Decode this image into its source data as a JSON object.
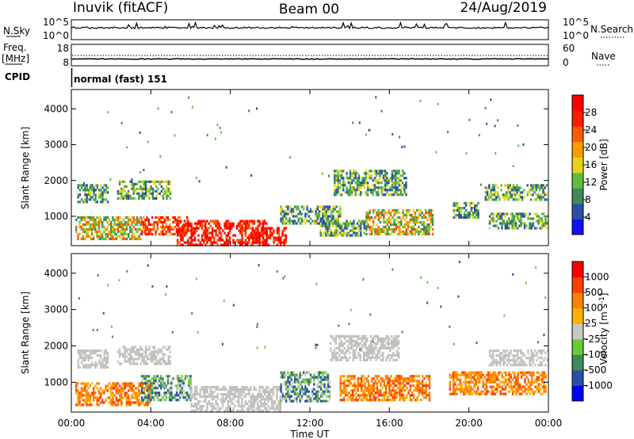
{
  "header": {
    "station": "Inuvik (fitACF)",
    "beam": "Beam 00",
    "date": "24/Aug/2019"
  },
  "strips": {
    "nsky_label": "N.Sky",
    "nsearch_label": "N.Search",
    "noise_ticks_left": [
      "10^5",
      "10^0"
    ],
    "noise_ticks_right": [
      "10^5",
      "10^0"
    ],
    "freq_label": "Freq.",
    "freq_unit": "[MHz]",
    "freq_ticks": [
      "18",
      "8"
    ],
    "nave_label": "Nave",
    "nave_ticks": [
      "60",
      "0"
    ],
    "cpid_label": "CPID",
    "cpid_value": "normal (fast) 151"
  },
  "colors": {
    "power": [
      "#1010ff",
      "#2a4fa6",
      "#3f8a5a",
      "#5cbf3c",
      "#e8d21a",
      "#ff9a00",
      "#ff5a00",
      "#ff1a00",
      "#ff0000"
    ],
    "velocity": [
      "#0000ff",
      "#2a4fa6",
      "#3f8a5a",
      "#66cc33",
      "#c8c8c0",
      "#ffb000",
      "#ff8000",
      "#ff4000",
      "#ff0000"
    ],
    "ground_scatter": "#bebebe"
  },
  "chart_data": [
    {
      "type": "heatmap",
      "title": "",
      "xlabel": "Time UT",
      "ylabel": "Slant Range [km]",
      "x_ticks": [
        "00:00",
        "04:00",
        "08:00",
        "12:00",
        "16:00",
        "20:00",
        "00:00"
      ],
      "x_range_hours": [
        0,
        24
      ],
      "y_ticks": [
        "1000",
        "2000",
        "3000",
        "4000"
      ],
      "y_range_km": [
        180,
        4540
      ],
      "colorbar_label": "Power [dB]",
      "colorbar_ticks": [
        "4",
        "8",
        "12",
        "16",
        "20",
        "24",
        "28"
      ],
      "colorbar_range": [
        0,
        30
      ],
      "regions": [
        {
          "t0": 0.3,
          "t1": 1.8,
          "r0": 1400,
          "r1": 1900,
          "level": "mid"
        },
        {
          "t0": 2.3,
          "t1": 5.0,
          "r0": 1500,
          "r1": 2000,
          "level": "mid"
        },
        {
          "t0": 0.2,
          "t1": 3.5,
          "r0": 400,
          "r1": 1000,
          "level": "high"
        },
        {
          "t0": 3.5,
          "t1": 5.8,
          "r0": 500,
          "r1": 1000,
          "level": "vhigh"
        },
        {
          "t0": 5.3,
          "t1": 9.8,
          "r0": 180,
          "r1": 900,
          "level": "max"
        },
        {
          "t0": 9.0,
          "t1": 10.8,
          "r0": 180,
          "r1": 700,
          "level": "max"
        },
        {
          "t0": 10.5,
          "t1": 13.5,
          "r0": 800,
          "r1": 1300,
          "level": "mid"
        },
        {
          "t0": 12.5,
          "t1": 14.8,
          "r0": 450,
          "r1": 900,
          "level": "mid"
        },
        {
          "t0": 13.2,
          "t1": 16.8,
          "r0": 1600,
          "r1": 2300,
          "level": "mid"
        },
        {
          "t0": 14.8,
          "t1": 18.2,
          "r0": 500,
          "r1": 1200,
          "level": "high"
        },
        {
          "t0": 19.2,
          "t1": 20.5,
          "r0": 1000,
          "r1": 1400,
          "level": "mid"
        },
        {
          "t0": 20.8,
          "t1": 23.9,
          "r0": 1500,
          "r1": 1900,
          "level": "mid"
        },
        {
          "t0": 21.0,
          "t1": 23.9,
          "r0": 700,
          "r1": 1100,
          "level": "mid"
        }
      ]
    },
    {
      "type": "heatmap",
      "title": "",
      "xlabel": "Time UT",
      "ylabel": "Slant Range [km]",
      "x_ticks": [
        "00:00",
        "04:00",
        "08:00",
        "12:00",
        "16:00",
        "20:00",
        "00:00"
      ],
      "x_range_hours": [
        0,
        24
      ],
      "y_ticks": [
        "1000",
        "2000",
        "3000",
        "4000"
      ],
      "y_range_km": [
        180,
        4540
      ],
      "colorbar_label": "Velocity [m s^-1]",
      "colorbar_ticks": [
        "1000",
        "500",
        "100",
        "25",
        "-25",
        "-100",
        "-500",
        "-1000"
      ],
      "regions": [
        {
          "t0": 0.3,
          "t1": 1.8,
          "r0": 1400,
          "r1": 1900,
          "level": "ground"
        },
        {
          "t0": 2.3,
          "t1": 5.0,
          "r0": 1500,
          "r1": 2000,
          "level": "ground"
        },
        {
          "t0": 0.2,
          "t1": 4.0,
          "r0": 400,
          "r1": 1000,
          "level": "neg"
        },
        {
          "t0": 3.5,
          "t1": 6.0,
          "r0": 500,
          "r1": 1200,
          "level": "pos"
        },
        {
          "t0": 6.0,
          "t1": 10.5,
          "r0": 200,
          "r1": 900,
          "level": "ground"
        },
        {
          "t0": 10.5,
          "t1": 13.0,
          "r0": 500,
          "r1": 1300,
          "level": "pos"
        },
        {
          "t0": 13.0,
          "t1": 16.5,
          "r0": 1600,
          "r1": 2300,
          "level": "ground"
        },
        {
          "t0": 13.5,
          "t1": 18.0,
          "r0": 500,
          "r1": 1200,
          "level": "neg"
        },
        {
          "t0": 19.0,
          "t1": 23.9,
          "r0": 700,
          "r1": 1300,
          "level": "neg"
        },
        {
          "t0": 21.0,
          "t1": 23.9,
          "r0": 1500,
          "r1": 1900,
          "level": "ground"
        }
      ]
    }
  ]
}
